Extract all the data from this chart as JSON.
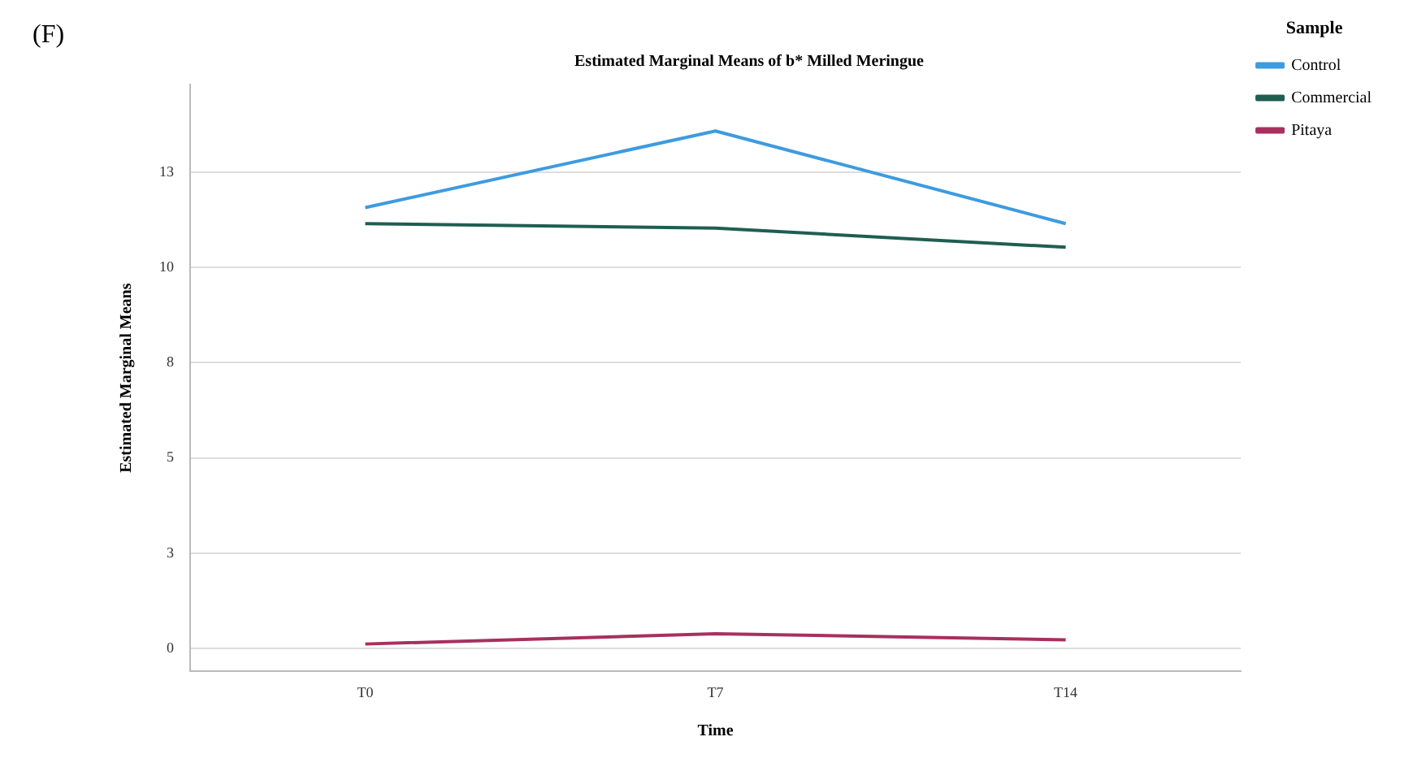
{
  "chart_data": {
    "type": "line",
    "title": "Estimated Marginal Means of b* Milled Meringue",
    "xlabel": "Time",
    "ylabel": "Estimated Marginal Means",
    "legend_title": "Sample",
    "annotations": [
      "(F)"
    ],
    "categories": [
      "T0",
      "T7",
      "T14"
    ],
    "series": [
      {
        "name": "Control",
        "color": "#3d9be0",
        "values": [
          11.57,
          13.58,
          11.15
        ]
      },
      {
        "name": "Commercial",
        "color": "#1f5e50",
        "values": [
          11.15,
          11.03,
          10.53
        ]
      },
      {
        "name": "Pitaya",
        "color": "#a8305e",
        "values": [
          0.12,
          0.39,
          0.23
        ]
      }
    ],
    "ylim": [
      -0.6,
      14.8
    ],
    "yticks": [
      0,
      {
        "value": 2.5,
        "label": "3"
      },
      5,
      {
        "value": 7.5,
        "label": "8"
      },
      10,
      {
        "value": 12.5,
        "label": "13"
      }
    ],
    "grid": "y",
    "legend": "top right",
    "marker": "none",
    "line_style": "solid"
  }
}
